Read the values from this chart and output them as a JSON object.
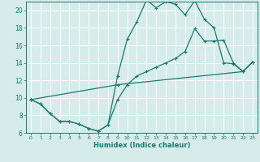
{
  "xlabel": "Humidex (Indice chaleur)",
  "bg_color": "#d6ecea",
  "line_color": "#1a7a6e",
  "grid_color": "#ffffff",
  "xlim": [
    -0.5,
    23.5
  ],
  "ylim": [
    6,
    21
  ],
  "xticks": [
    0,
    1,
    2,
    3,
    4,
    5,
    6,
    7,
    8,
    9,
    10,
    11,
    12,
    13,
    14,
    15,
    16,
    17,
    18,
    19,
    20,
    21,
    22,
    23
  ],
  "yticks": [
    6,
    8,
    10,
    12,
    14,
    16,
    18,
    20
  ],
  "line1_x": [
    0,
    1,
    2,
    3,
    4,
    5,
    6,
    7,
    8,
    9,
    10,
    11,
    12,
    13,
    14,
    15,
    16,
    17,
    18,
    19,
    20,
    21,
    22,
    23
  ],
  "line1_y": [
    9.8,
    9.3,
    8.2,
    7.3,
    7.3,
    7.0,
    6.5,
    6.2,
    6.9,
    12.5,
    16.7,
    18.7,
    21.2,
    20.3,
    21.0,
    20.7,
    19.5,
    21.1,
    19.0,
    18.0,
    14.0,
    13.9,
    13.0,
    14.1
  ],
  "line2_x": [
    0,
    1,
    2,
    3,
    4,
    5,
    6,
    7,
    8,
    9,
    10,
    11,
    12,
    13,
    14,
    15,
    16,
    17,
    18,
    19,
    20,
    21,
    22,
    23
  ],
  "line2_y": [
    9.8,
    9.3,
    8.2,
    7.3,
    7.3,
    7.0,
    6.5,
    6.2,
    6.9,
    9.8,
    11.5,
    12.5,
    13.0,
    13.5,
    14.0,
    14.5,
    15.3,
    17.9,
    16.5,
    16.5,
    16.6,
    14.0,
    13.0,
    14.1
  ],
  "line3_x": [
    0,
    9,
    22,
    23
  ],
  "line3_y": [
    9.8,
    11.5,
    13.0,
    14.1
  ]
}
